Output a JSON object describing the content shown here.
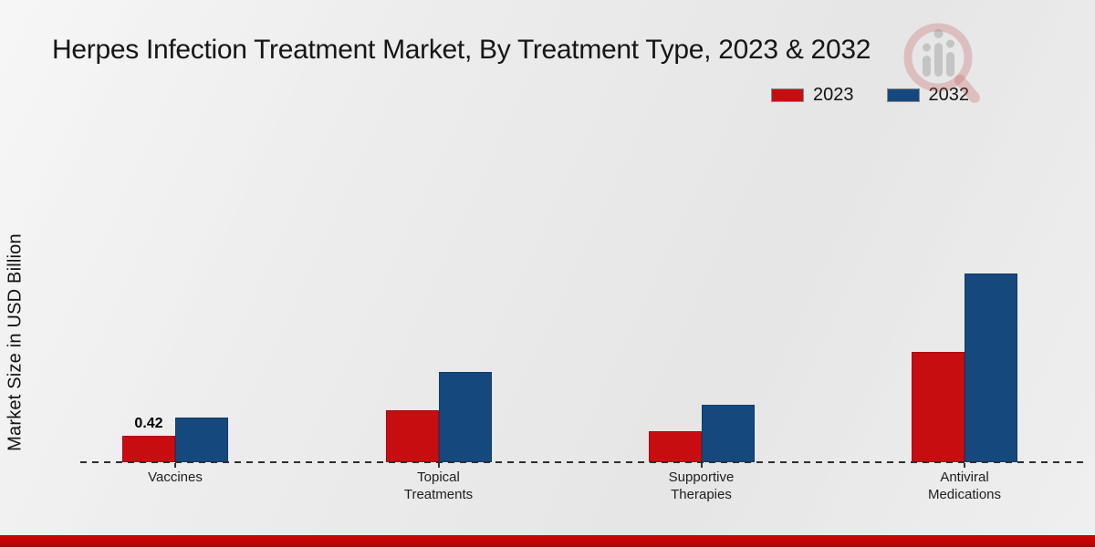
{
  "title": "Herpes Infection Treatment Market, By Treatment Type, 2023 & 2032",
  "legend": {
    "items": [
      {
        "label": "2023",
        "color": "#c80d11"
      },
      {
        "label": "2032",
        "color": "#15497e"
      }
    ]
  },
  "y_axis": {
    "label": "Market Size in USD Billion"
  },
  "chart_data": {
    "type": "bar",
    "title": "Herpes Infection Treatment Market, By Treatment Type, 2023 & 2032",
    "categories": [
      "Vaccines",
      "Topical Treatments",
      "Supportive Therapies",
      "Antiviral Medications"
    ],
    "category_lines": [
      [
        "Vaccines"
      ],
      [
        "Topical",
        "Treatments"
      ],
      [
        "Supportive",
        "Therapies"
      ],
      [
        "Antiviral",
        "Medications"
      ]
    ],
    "series": [
      {
        "name": "2023",
        "color": "#c80d11",
        "values": [
          0.42,
          0.83,
          0.49,
          1.75
        ],
        "labels": [
          "0.42",
          null,
          null,
          null
        ]
      },
      {
        "name": "2032",
        "color": "#15497e",
        "values": [
          0.71,
          1.44,
          0.91,
          3.0
        ],
        "labels": [
          null,
          null,
          null,
          null
        ]
      }
    ],
    "xlabel": "",
    "ylabel": "Market Size in USD Billion",
    "ylim": [
      0,
      3.6
    ],
    "grid": false,
    "legend_position": "top-right",
    "baseline_style": "dashed"
  },
  "icons": {
    "watermark": "magnifier-bar-chart-logo"
  },
  "footer": {
    "accent_color": "#c00404"
  }
}
